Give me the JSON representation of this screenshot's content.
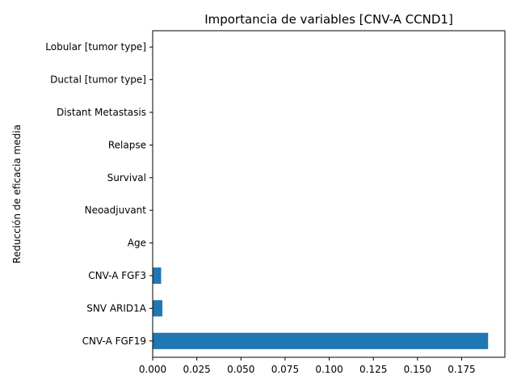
{
  "chart_data": {
    "type": "bar",
    "orientation": "horizontal",
    "title": "Importancia de variables [CNV-A CCND1]",
    "xlabel": "",
    "ylabel": "Reducción de eficacia media",
    "categories": [
      "CNV-A FGF19",
      "SNV ARID1A",
      "CNV-A FGF3",
      "Age",
      "Neoadjuvant",
      "Survival",
      "Relapse",
      "Distant Metastasis",
      "Ductal [tumor type]",
      "Lobular [tumor type]"
    ],
    "values": [
      0.19,
      0.0055,
      0.0048,
      0.0,
      0.0,
      0.0,
      0.0,
      0.0,
      0.0,
      0.0
    ],
    "xlim": [
      0,
      0.1995
    ],
    "xticks": [
      0.0,
      0.025,
      0.05,
      0.075,
      0.1,
      0.125,
      0.15,
      0.175
    ],
    "xtick_labels": [
      "0.000",
      "0.025",
      "0.050",
      "0.075",
      "0.100",
      "0.125",
      "0.150",
      "0.175"
    ],
    "bar_color": "#1f77b4",
    "grid": false,
    "legend": "none"
  }
}
